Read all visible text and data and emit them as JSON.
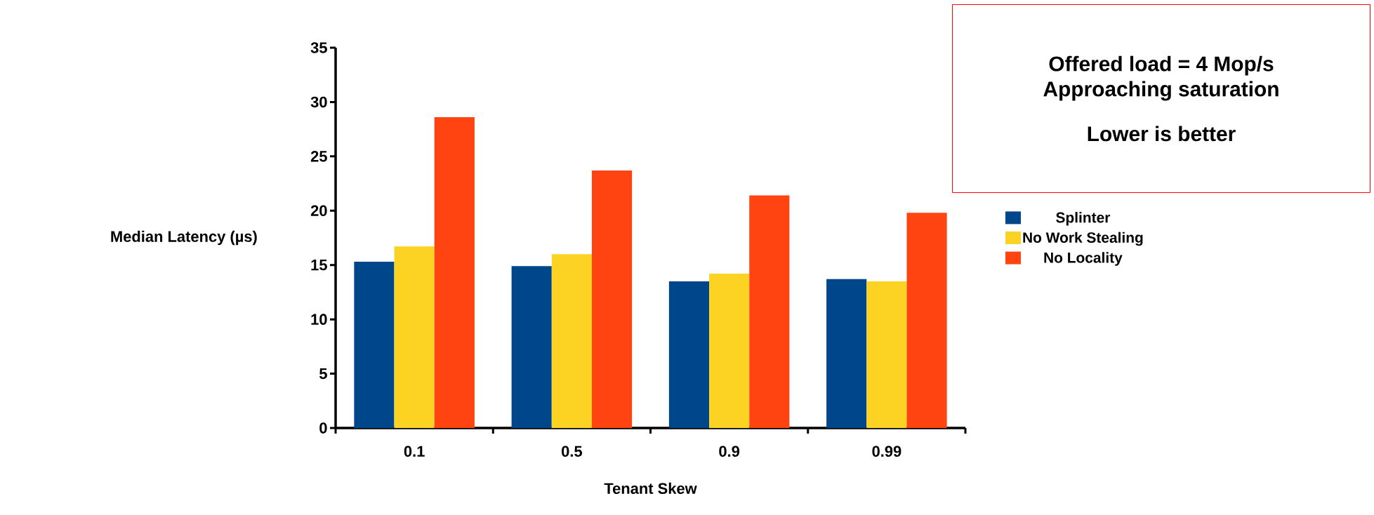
{
  "chart_data": {
    "type": "bar",
    "xlabel": "Tenant Skew",
    "ylabel": "Median Latency (µs)",
    "categories": [
      "0.1",
      "0.5",
      "0.9",
      "0.99"
    ],
    "series": [
      {
        "name": "Splinter",
        "color": "#00468b",
        "values": [
          15.3,
          14.9,
          13.5,
          13.7
        ]
      },
      {
        "name": "No Work Stealing",
        "color": "#fdd323",
        "values": [
          16.7,
          16.0,
          14.2,
          13.5
        ]
      },
      {
        "name": "No Locality",
        "color": "#ff4411",
        "values": [
          28.6,
          23.7,
          21.4,
          19.8
        ]
      }
    ],
    "ylim": [
      0,
      35
    ],
    "yticks": [
      0,
      5,
      10,
      15,
      20,
      25,
      30,
      35
    ],
    "legend": "right",
    "annotations": [
      "Offered load = 4 Mop/s",
      "Approaching saturation",
      "Lower is better"
    ]
  }
}
